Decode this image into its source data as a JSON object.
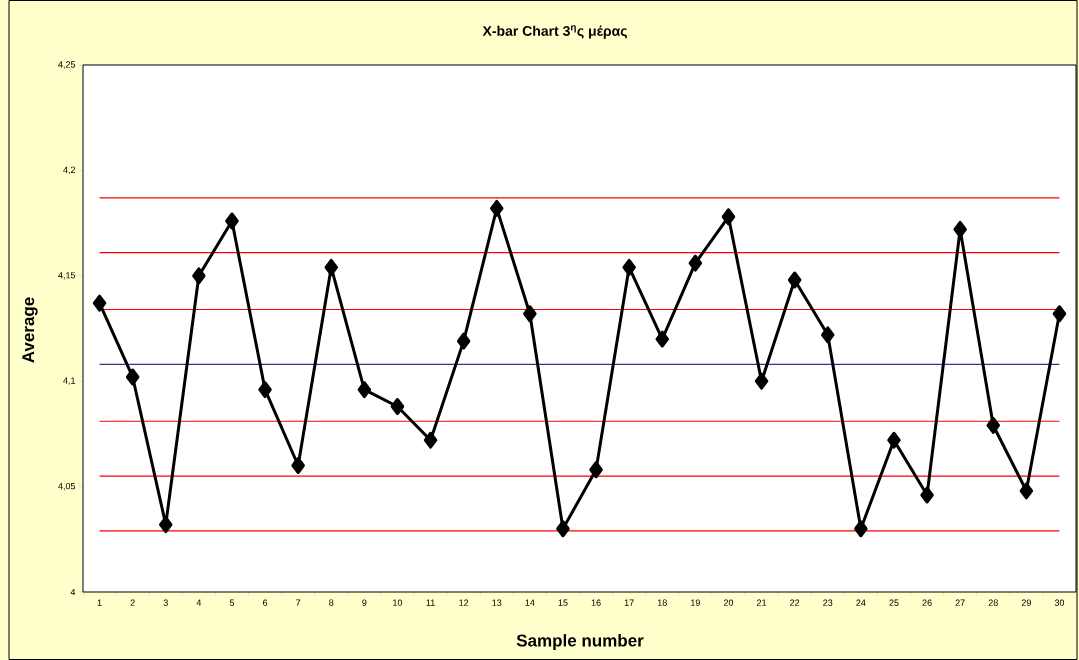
{
  "chart_data": {
    "type": "line",
    "title": "X-bar Chart 3$^{η}$ς μέρας",
    "xlabel": "Sample number",
    "ylabel": "Average",
    "categories": [
      "1",
      "2",
      "3",
      "4",
      "5",
      "6",
      "7",
      "8",
      "9",
      "10",
      "11",
      "12",
      "13",
      "14",
      "15",
      "16",
      "17",
      "18",
      "19",
      "20",
      "21",
      "22",
      "23",
      "24",
      "25",
      "26",
      "27",
      "28",
      "29",
      "30"
    ],
    "series": [
      {
        "color": "#000000",
        "values": [
          4.137,
          4.102,
          4.032,
          4.15,
          4.176,
          4.096,
          4.06,
          4.154,
          4.096,
          4.088,
          4.072,
          4.119,
          4.182,
          4.132,
          4.03,
          4.058,
          4.154,
          4.12,
          4.156,
          4.178,
          4.1,
          4.148,
          4.122,
          4.03,
          4.072,
          4.046,
          4.172,
          4.079,
          4.048,
          4.132
        ]
      }
    ],
    "ylim": [
      4,
      4.25
    ],
    "yticks": [
      {
        "value": 4,
        "label": "4"
      },
      {
        "value": 4.05,
        "label": "4,05"
      },
      {
        "value": 4.1,
        "label": "4,1"
      },
      {
        "value": 4.15,
        "label": "4,15"
      },
      {
        "value": 4.2,
        "label": "4,2"
      },
      {
        "value": 4.25,
        "label": "4,25"
      }
    ],
    "ref_lines": [
      {
        "axis": "y",
        "value": 4.187,
        "color": "#ff0000"
      },
      {
        "axis": "y",
        "value": 4.161,
        "color": "#ff0000"
      },
      {
        "axis": "y",
        "value": 4.134,
        "color": "#ff0000"
      },
      {
        "axis": "y",
        "value": 4.108,
        "color": "#333399"
      },
      {
        "axis": "y",
        "value": 4.081,
        "color": "#ff0000"
      },
      {
        "axis": "y",
        "value": 4.055,
        "color": "#ff0000"
      },
      {
        "axis": "y",
        "value": 4.029,
        "color": "#ff0000"
      }
    ],
    "marker": "diamond"
  }
}
